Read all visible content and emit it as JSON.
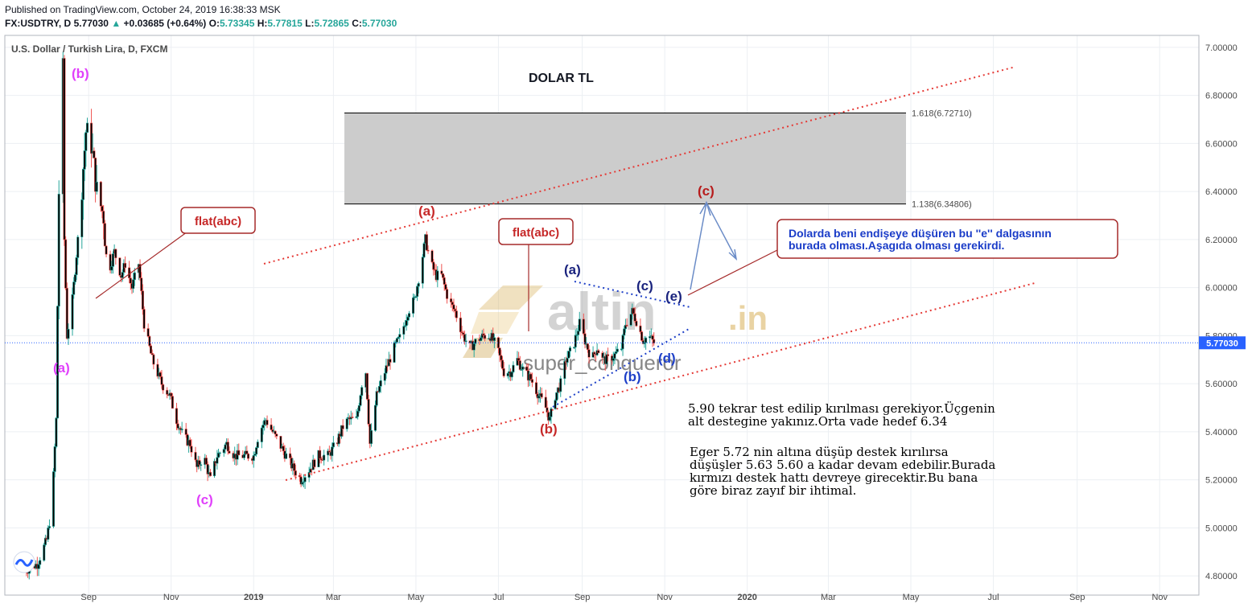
{
  "header": {
    "published": "Published on TradingView.com, October 24, 2019 16:38:33 MSK",
    "symbol": "FX:USDTRY, D",
    "last": "5.77030",
    "change_arrow": "▲",
    "change": "+0.03685 (+0.64%)",
    "o_label": "O:",
    "o_val": "5.73345",
    "h_label": "H:",
    "h_val": "5.77815",
    "l_label": "L:",
    "l_val": "5.72865",
    "c_label": "C:",
    "c_val": "5.77030"
  },
  "chart_title": "U.S. Dollar / Turkish Lira, D, FXCM",
  "main_heading": "DOLAR TL",
  "watermark": {
    "brand": "altin",
    "suffix": ".in",
    "author": "super_conqueror"
  },
  "price_tag": "5.77030",
  "fib_levels": [
    {
      "label": "1.618(6.72710)",
      "price": 6.7271
    },
    {
      "label": "1.138(6.34806)",
      "price": 6.34806
    }
  ],
  "callouts": {
    "flat_left": "flat(abc)",
    "flat_mid": "flat(abc)",
    "concern_line1": "Dolarda beni endişeye düşüren bu ''e'' dalgasının",
    "concern_line2": "burada olması.Aşagıda olması gerekirdi."
  },
  "wave_labels": {
    "magenta_b": "(b)",
    "magenta_a": "(a)",
    "magenta_c": "(c)",
    "red_a": "(a)",
    "red_b": "(b)",
    "red_c": "(c)",
    "blue_a": "(a)",
    "blue_b": "(b)",
    "blue_c": "(c)",
    "blue_d": "(d)",
    "blue_e": "(e)"
  },
  "notes": {
    "n1_line1": "5.90 tekrar test edilip kırılması gerekiyor.Üçgenin",
    "n1_line2": "alt destegine yakınız.Orta vade hedef 6.34",
    "n2_line1": "Eger 5.72 nin altına düşüp destek kırılırsa",
    "n2_line2": "düşüşler 5.63  5.60 a kadar devam edebilir.Burada",
    "n2_line3": "kırmızı destek hattı devreye girecektir.Bu bana",
    "n2_line4": "göre biraz zayıf bir ihtimal."
  },
  "colors": {
    "bull": "#26a69a",
    "bear": "#ef5350",
    "candle_body": "#000000",
    "magenta": "#e040fb",
    "red_label": "#c62828",
    "blue_label": "#1a237e",
    "channel": "#e53935",
    "blue_dotted": "#1e40c8",
    "fib_zone": "#cccccc",
    "callout_border": "#a52a2a",
    "price_line": "#2962ff"
  },
  "chart_data": {
    "type": "candlestick",
    "title": "U.S. Dollar / Turkish Lira, D, FXCM",
    "ylim": [
      4.72,
      7.05
    ],
    "y_ticks": [
      "7.00000",
      "6.80000",
      "6.60000",
      "6.40000",
      "6.20000",
      "6.00000",
      "5.80000",
      "5.60000",
      "5.40000",
      "5.20000",
      "5.00000",
      "4.80000"
    ],
    "x_ticks": [
      "Sep",
      "Nov",
      "2019",
      "Mar",
      "May",
      "Jul",
      "Sep",
      "Nov",
      "2020",
      "Mar",
      "May",
      "Jul",
      "Sep",
      "Nov"
    ],
    "last_price": 5.7703,
    "close_path": [
      [
        "2018-07-15",
        4.82
      ],
      [
        "2018-07-25",
        4.85
      ],
      [
        "2018-08-01",
        4.95
      ],
      [
        "2018-08-05",
        5.1
      ],
      [
        "2018-08-08",
        5.45
      ],
      [
        "2018-08-10",
        6.4
      ],
      [
        "2018-08-13",
        6.9
      ],
      [
        "2018-08-14",
        6.2
      ],
      [
        "2018-08-16",
        5.8
      ],
      [
        "2018-08-20",
        5.95
      ],
      [
        "2018-08-24",
        6.2
      ],
      [
        "2018-08-30",
        6.65
      ],
      [
        "2018-09-03",
        6.6
      ],
      [
        "2018-09-07",
        6.4
      ],
      [
        "2018-09-12",
        6.3
      ],
      [
        "2018-09-15",
        6.05
      ],
      [
        "2018-09-20",
        6.15
      ],
      [
        "2018-09-25",
        6.05
      ],
      [
        "2018-09-28",
        6.1
      ],
      [
        "2018-10-03",
        6.0
      ],
      [
        "2018-10-08",
        6.1
      ],
      [
        "2018-10-12",
        5.85
      ],
      [
        "2018-10-18",
        5.7
      ],
      [
        "2018-10-25",
        5.6
      ],
      [
        "2018-10-31",
        5.55
      ],
      [
        "2018-11-05",
        5.45
      ],
      [
        "2018-11-10",
        5.38
      ],
      [
        "2018-11-15",
        5.35
      ],
      [
        "2018-11-20",
        5.25
      ],
      [
        "2018-11-25",
        5.3
      ],
      [
        "2018-11-30",
        5.2
      ],
      [
        "2018-12-05",
        5.3
      ],
      [
        "2018-12-12",
        5.35
      ],
      [
        "2018-12-18",
        5.3
      ],
      [
        "2018-12-25",
        5.3
      ],
      [
        "2019-01-01",
        5.3
      ],
      [
        "2019-01-05",
        5.4
      ],
      [
        "2019-01-10",
        5.45
      ],
      [
        "2019-01-15",
        5.4
      ],
      [
        "2019-01-20",
        5.35
      ],
      [
        "2019-01-25",
        5.3
      ],
      [
        "2019-01-30",
        5.25
      ],
      [
        "2019-02-05",
        5.2
      ],
      [
        "2019-02-12",
        5.25
      ],
      [
        "2019-02-18",
        5.3
      ],
      [
        "2019-02-25",
        5.3
      ],
      [
        "2019-03-03",
        5.35
      ],
      [
        "2019-03-08",
        5.42
      ],
      [
        "2019-03-12",
        5.45
      ],
      [
        "2019-03-18",
        5.45
      ],
      [
        "2019-03-22",
        5.6
      ],
      [
        "2019-03-25",
        5.65
      ],
      [
        "2019-03-28",
        5.35
      ],
      [
        "2019-04-02",
        5.55
      ],
      [
        "2019-04-08",
        5.65
      ],
      [
        "2019-04-15",
        5.75
      ],
      [
        "2019-04-20",
        5.8
      ],
      [
        "2019-04-25",
        5.9
      ],
      [
        "2019-04-30",
        5.95
      ],
      [
        "2019-05-05",
        6.1
      ],
      [
        "2019-05-08",
        6.2
      ],
      [
        "2019-05-12",
        6.1
      ],
      [
        "2019-05-16",
        6.05
      ],
      [
        "2019-05-20",
        6.05
      ],
      [
        "2019-05-25",
        5.95
      ],
      [
        "2019-05-30",
        5.9
      ],
      [
        "2019-06-05",
        5.8
      ],
      [
        "2019-06-10",
        5.75
      ],
      [
        "2019-06-15",
        5.78
      ],
      [
        "2019-06-20",
        5.8
      ],
      [
        "2019-06-25",
        5.8
      ],
      [
        "2019-06-30",
        5.75
      ],
      [
        "2019-07-05",
        5.65
      ],
      [
        "2019-07-10",
        5.65
      ],
      [
        "2019-07-15",
        5.7
      ],
      [
        "2019-07-20",
        5.65
      ],
      [
        "2019-07-25",
        5.62
      ],
      [
        "2019-07-31",
        5.55
      ],
      [
        "2019-08-05",
        5.5
      ],
      [
        "2019-08-08",
        5.45
      ],
      [
        "2019-08-12",
        5.55
      ],
      [
        "2019-08-16",
        5.6
      ],
      [
        "2019-08-20",
        5.7
      ],
      [
        "2019-08-25",
        5.75
      ],
      [
        "2019-08-30",
        5.85
      ],
      [
        "2019-09-03",
        5.78
      ],
      [
        "2019-09-08",
        5.7
      ],
      [
        "2019-09-12",
        5.75
      ],
      [
        "2019-09-16",
        5.7
      ],
      [
        "2019-09-20",
        5.7
      ],
      [
        "2019-09-25",
        5.72
      ],
      [
        "2019-09-30",
        5.75
      ],
      [
        "2019-10-03",
        5.85
      ],
      [
        "2019-10-08",
        5.9
      ],
      [
        "2019-10-12",
        5.85
      ],
      [
        "2019-10-16",
        5.78
      ],
      [
        "2019-10-20",
        5.8
      ],
      [
        "2019-10-24",
        5.77
      ]
    ]
  }
}
